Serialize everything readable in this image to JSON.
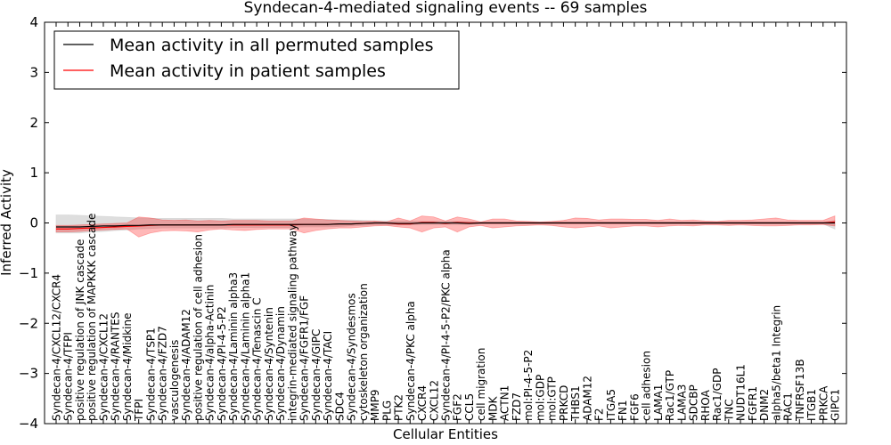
{
  "chart_data": {
    "type": "line",
    "title": "Syndecan-4-mediated signaling events -- 69 samples",
    "xlabel": "Cellular Entities",
    "ylabel": "Inferred Activity",
    "ylim": [
      -4,
      4
    ],
    "yticks": [
      -4,
      -3,
      -2,
      -1,
      0,
      1,
      2,
      3,
      4
    ],
    "ytick_labels": [
      "−4",
      "−3",
      "−2",
      "−1",
      "0",
      "1",
      "2",
      "3",
      "4"
    ],
    "legend_position": "top-left",
    "categories": [
      "Syndecan-4/CXCL12/CXCR4",
      "Syndecan-4/TFPI",
      "positive regulation of JNK cascade",
      "positive regulation of MAPKKK cascade",
      "Syndecan-4/CXCL12",
      "Syndecan-4/RANTES",
      "Syndecan-4/Midkine",
      "TFPI",
      "Syndecan-4/TSP1",
      "Syndecan-4/FZD7",
      "vasculogenesis",
      "Syndecan-4/ADAM12",
      "positive regulation of cell adhesion",
      "Syndecan-4/alpha-Actinin",
      "Syndecan-4/PI-4-5-P2",
      "Syndecan-4/Laminin alpha3",
      "Syndecan-4/Laminin alpha1",
      "Syndecan-4/Tenascin C",
      "Syndecan-4/Syntenin",
      "Syndecan-4/Dynamin",
      "integrin-mediated signaling pathway",
      "Syndecan-4/FGFR1/FGF",
      "Syndecan-4/GIPC",
      "Syndecan-4/TACI",
      "SDC4",
      "Syndecan-4/Syndesmos",
      "cytoskeleton organization",
      "MMP9",
      "PLG",
      "PTK2",
      "Syndecan-4/PKC alpha",
      "CXCR4",
      "CXCL12",
      "Syndecan-4/PI-4-5-P2/PKC alpha",
      "FGF2",
      "CCL5",
      "cell migration",
      "MDK",
      "ACTN1",
      "FZD7",
      "mol:PI-4-5-P2",
      "mol:GDP",
      "mol:GTP",
      "PRKCD",
      "THBS1",
      "ADAM12",
      "F2",
      "ITGA5",
      "FN1",
      "FGF6",
      "cell adhesion",
      "LAMA1",
      "Rac1/GTP",
      "LAMA3",
      "SDCBP",
      "RHOA",
      "Rac1/GDP",
      "TNC",
      "NUDT16L1",
      "FGFR1",
      "DNM2",
      "alpha5/beta1 Integrin",
      "RAC1",
      "TNFRSF13B",
      "ITGB1",
      "PRKCA",
      "GIPC1"
    ],
    "series": [
      {
        "name": "Mean activity in all permuted samples",
        "color": "#000000",
        "values": [
          -0.08,
          -0.08,
          -0.08,
          -0.07,
          -0.06,
          -0.06,
          -0.05,
          -0.05,
          -0.04,
          -0.04,
          -0.04,
          -0.04,
          -0.04,
          -0.04,
          -0.04,
          -0.03,
          -0.03,
          -0.03,
          -0.03,
          -0.03,
          -0.03,
          -0.03,
          -0.03,
          -0.03,
          -0.02,
          -0.02,
          -0.01,
          0.0,
          0.0,
          -0.01,
          -0.01,
          0.0,
          0.0,
          0.0,
          0.0,
          -0.01,
          0.0,
          0.0,
          0.0,
          0.0,
          0.0,
          0.0,
          0.0,
          0.0,
          0.0,
          0.0,
          0.0,
          0.0,
          0.0,
          0.0,
          0.0,
          0.0,
          0.0,
          0.0,
          0.0,
          0.0,
          0.0,
          0.0,
          0.0,
          0.0,
          0.0,
          0.0,
          0.0,
          0.0,
          0.0,
          0.0,
          0.0
        ],
        "band_lower": [
          -0.2,
          -0.2,
          -0.2,
          -0.18,
          -0.17,
          -0.15,
          -0.14,
          -0.12,
          -0.11,
          -0.1,
          -0.1,
          -0.1,
          -0.1,
          -0.1,
          -0.1,
          -0.09,
          -0.09,
          -0.09,
          -0.09,
          -0.09,
          -0.09,
          -0.08,
          -0.08,
          -0.08,
          -0.07,
          -0.06,
          -0.05,
          -0.04,
          -0.04,
          -0.04,
          -0.04,
          -0.03,
          -0.03,
          -0.03,
          -0.03,
          -0.03,
          -0.02,
          -0.02,
          -0.02,
          -0.02,
          -0.02,
          -0.02,
          -0.02,
          -0.02,
          -0.02,
          -0.02,
          -0.02,
          -0.02,
          -0.02,
          -0.02,
          -0.02,
          -0.02,
          -0.02,
          -0.02,
          -0.02,
          -0.02,
          -0.02,
          -0.02,
          -0.02,
          -0.02,
          -0.02,
          -0.02,
          -0.02,
          -0.02,
          -0.02,
          -0.02,
          -0.12
        ],
        "band_upper": [
          0.16,
          0.16,
          0.15,
          0.14,
          0.13,
          0.12,
          0.11,
          0.1,
          0.09,
          0.09,
          0.09,
          0.09,
          0.09,
          0.09,
          0.09,
          0.08,
          0.08,
          0.08,
          0.08,
          0.08,
          0.08,
          0.08,
          0.07,
          0.07,
          0.06,
          0.06,
          0.05,
          0.04,
          0.04,
          0.04,
          0.04,
          0.03,
          0.03,
          0.03,
          0.03,
          0.03,
          0.02,
          0.02,
          0.02,
          0.02,
          0.02,
          0.02,
          0.02,
          0.02,
          0.02,
          0.02,
          0.02,
          0.02,
          0.02,
          0.02,
          0.02,
          0.02,
          0.02,
          0.02,
          0.02,
          0.02,
          0.02,
          0.02,
          0.02,
          0.02,
          0.02,
          0.02,
          0.02,
          0.02,
          0.02,
          0.02,
          0.05
        ]
      },
      {
        "name": "Mean activity in patient samples",
        "color": "#ff0000",
        "values": [
          -0.12,
          -0.12,
          -0.11,
          -0.1,
          -0.09,
          -0.08,
          -0.07,
          -0.06,
          -0.05,
          -0.04,
          -0.04,
          -0.04,
          -0.04,
          -0.04,
          -0.04,
          -0.04,
          -0.04,
          -0.04,
          -0.04,
          -0.04,
          -0.04,
          -0.03,
          -0.03,
          -0.03,
          -0.02,
          -0.02,
          -0.01,
          0.0,
          0.0,
          -0.02,
          -0.02,
          0.01,
          0.01,
          -0.01,
          0.01,
          0.0,
          0.0,
          0.0,
          0.0,
          0.0,
          0.0,
          0.0,
          0.0,
          0.0,
          0.0,
          0.0,
          0.0,
          0.0,
          0.0,
          0.0,
          0.0,
          0.0,
          0.0,
          0.0,
          0.0,
          0.0,
          0.0,
          0.0,
          0.0,
          0.0,
          0.0,
          0.0,
          0.0,
          0.0,
          0.0,
          0.0,
          0.02
        ],
        "band_lower": [
          -0.18,
          -0.18,
          -0.17,
          -0.15,
          -0.14,
          -0.13,
          -0.12,
          -0.28,
          -0.2,
          -0.16,
          -0.15,
          -0.16,
          -0.18,
          -0.14,
          -0.12,
          -0.14,
          -0.15,
          -0.13,
          -0.12,
          -0.12,
          -0.12,
          -0.2,
          -0.15,
          -0.12,
          -0.1,
          -0.1,
          -0.08,
          -0.06,
          -0.05,
          -0.08,
          -0.1,
          -0.18,
          -0.1,
          -0.08,
          -0.18,
          -0.08,
          -0.05,
          -0.1,
          -0.08,
          -0.06,
          -0.05,
          -0.04,
          -0.05,
          -0.08,
          -0.1,
          -0.08,
          -0.06,
          -0.1,
          -0.08,
          -0.06,
          -0.06,
          -0.08,
          -0.06,
          -0.05,
          -0.06,
          -0.04,
          -0.04,
          -0.05,
          -0.04,
          -0.05,
          -0.06,
          -0.06,
          -0.05,
          -0.04,
          -0.04,
          -0.03,
          -0.06
        ],
        "band_upper": [
          -0.05,
          -0.05,
          -0.04,
          -0.03,
          -0.02,
          -0.01,
          0.0,
          0.12,
          0.1,
          0.06,
          0.05,
          0.06,
          0.04,
          0.05,
          0.04,
          0.05,
          0.05,
          0.05,
          0.04,
          0.04,
          0.04,
          0.1,
          0.08,
          0.06,
          0.05,
          0.04,
          0.03,
          0.04,
          0.02,
          0.1,
          0.04,
          0.14,
          0.12,
          0.04,
          0.12,
          0.08,
          0.02,
          0.08,
          0.08,
          0.04,
          0.03,
          0.02,
          0.03,
          0.05,
          0.1,
          0.09,
          0.06,
          0.08,
          0.08,
          0.07,
          0.07,
          0.05,
          0.08,
          0.05,
          0.06,
          0.04,
          0.03,
          0.05,
          0.05,
          0.06,
          0.08,
          0.1,
          0.06,
          0.05,
          0.05,
          0.05,
          0.14
        ]
      }
    ]
  }
}
